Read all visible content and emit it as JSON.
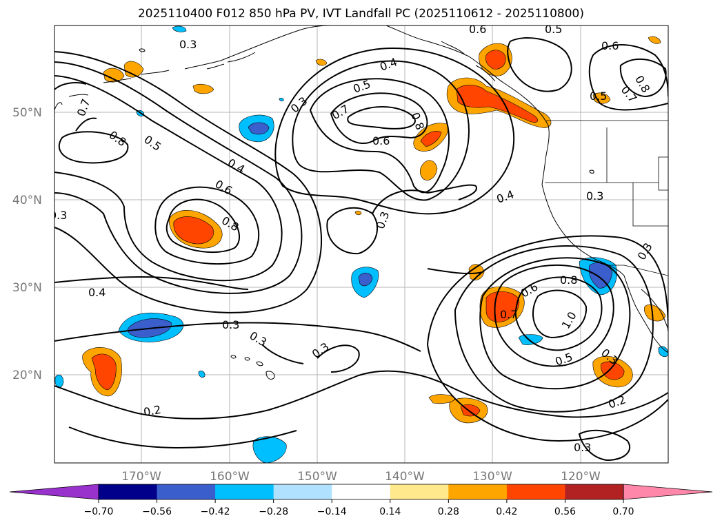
{
  "title": "2025110400 F012 850 hPa PV, IVT Landfall PC (2025110612 - 2025110800)",
  "map": {
    "lat_ticks": [
      "50°N",
      "40°N",
      "30°N",
      "20°N"
    ],
    "lon_ticks": [
      "170°W",
      "160°W",
      "150°W",
      "140°W",
      "130°W",
      "120°W"
    ],
    "contour_labels": [
      "0.3",
      "0.7",
      "0.8",
      "0.5",
      "0.4",
      "0.6",
      "0.8",
      "0.3",
      "0.3",
      "0.4",
      "0.3",
      "0.3",
      "0.3",
      "0.2",
      "0.5",
      "0.7",
      "0.6",
      "0.8",
      "0.4",
      "0.3",
      "0.6",
      "0.5",
      "0.6",
      "0.8",
      "0.7",
      "0.5",
      "0.4",
      "0.3",
      "0.3",
      "0.6",
      "0.8",
      "1.0",
      "0.7",
      "0.5",
      "0.3",
      "0.2",
      "0.3"
    ],
    "land_color": "#000000",
    "grid_color": "#b0b0b0"
  },
  "colorbar": {
    "ticks": [
      "−0.70",
      "−0.56",
      "−0.42",
      "−0.28",
      "−0.14",
      "0.14",
      "0.28",
      "0.42",
      "0.56",
      "0.70"
    ],
    "colors": [
      "#9932cc",
      "#00008b",
      "#3a5fcd",
      "#00bfff",
      "#b0e2ff",
      "#ffffff",
      "#ffe98c",
      "#ffa500",
      "#ff4500",
      "#b22222",
      "#ff88aa",
      "#ff88aa"
    ]
  }
}
